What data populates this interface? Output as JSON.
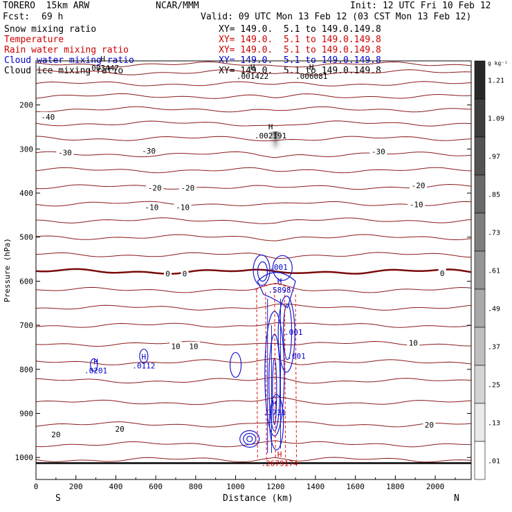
{
  "header": {
    "model": "TORERO  15km ARW",
    "org": "NCAR/MMM",
    "init": "Init: 12 UTC Fri 10 Feb 12",
    "fcst_label": "Fcst:",
    "fcst_value": "69 h",
    "valid": "Valid: 09 UTC Mon 13 Feb 12 (03 CST Mon 13 Feb 12)"
  },
  "legend": [
    {
      "label": "Snow mixing ratio",
      "xy": "XY= 149.0.  5.1 to 149.0.149.8",
      "color": "#000000"
    },
    {
      "label": "Temperature",
      "xy": "XY= 149.0.  5.1 to 149.0.149.8",
      "color": "#cc0000"
    },
    {
      "label": "Rain water mixing ratio",
      "xy": "XY= 149.0.  5.1 to 149.0.149.8",
      "color": "#cc0000"
    },
    {
      "label": "Cloud water mixing ratio",
      "xy": "XY= 149.0.  5.1 to 149.0.149.8",
      "color": "#0000cc"
    },
    {
      "label": "Cloud ice mixing ratio",
      "xy": "XY= 149.0.  5.1 to 149.0.149.8",
      "color": "#000000"
    }
  ],
  "chart_data": {
    "type": "cross-section",
    "xlabel": "Distance (km)",
    "ylabel": "Pressure (hPa)",
    "xlim": [
      0,
      2180
    ],
    "ylim": [
      1050,
      100
    ],
    "x_ticks": [
      0,
      200,
      400,
      600,
      800,
      1000,
      1200,
      1400,
      1600,
      1800,
      2000
    ],
    "y_ticks": [
      200,
      300,
      400,
      500,
      600,
      700,
      800,
      900,
      1000
    ],
    "left_end": "S",
    "right_end": "N",
    "colorbar": {
      "unit": "g kg⁻¹",
      "levels": [
        "1.21",
        "1.09",
        ".97",
        ".85",
        ".73",
        ".61",
        ".49",
        ".37",
        ".25",
        ".13",
        ".01"
      ]
    },
    "temperature_contours_pressure_hpa": [
      1005,
      970,
      925,
      875,
      826,
      784,
      742,
      700,
      660,
      620,
      578,
      540,
      500,
      462,
      424,
      386,
      348,
      312,
      276,
      242,
      210,
      180,
      152,
      126,
      108
    ],
    "freezing_level_hpa": 580,
    "surface_pressure_hpa": 1013,
    "temperature_labels": [
      {
        "x": 100,
        "p": 948,
        "text": "20"
      },
      {
        "x": 420,
        "p": 935,
        "text": "20"
      },
      {
        "x": 1970,
        "p": 926,
        "text": "20"
      },
      {
        "x": 700,
        "p": 748,
        "text": "10"
      },
      {
        "x": 790,
        "p": 748,
        "text": "10"
      },
      {
        "x": 1890,
        "p": 740,
        "text": "10"
      },
      {
        "x": 660,
        "p": 583,
        "text": "0"
      },
      {
        "x": 745,
        "p": 583,
        "text": "0"
      },
      {
        "x": 2035,
        "p": 582,
        "text": "0"
      },
      {
        "x": 580,
        "p": 432,
        "text": "-10"
      },
      {
        "x": 735,
        "p": 432,
        "text": "-10"
      },
      {
        "x": 1905,
        "p": 426,
        "text": "-10"
      },
      {
        "x": 595,
        "p": 388,
        "text": "-20"
      },
      {
        "x": 760,
        "p": 388,
        "text": "-20"
      },
      {
        "x": 1915,
        "p": 383,
        "text": "-20"
      },
      {
        "x": 145,
        "p": 308,
        "text": "-30"
      },
      {
        "x": 565,
        "p": 304,
        "text": "-30"
      },
      {
        "x": 1715,
        "p": 306,
        "text": "-30"
      },
      {
        "x": 60,
        "p": 227,
        "text": "-40"
      }
    ],
    "extrema_labels": [
      {
        "x": 1175,
        "p": 262,
        "text": "H",
        "value": ".002191",
        "color": "#000000"
      },
      {
        "x": 1085,
        "p": 127,
        "text": "H",
        "value": ".001422",
        "color": "#000000"
      },
      {
        "x": 1380,
        "p": 127,
        "text": "H",
        "value": ".006081",
        "color": "#000000"
      },
      {
        "x": 335,
        "p": 108,
        "text": "H",
        "value": ".003447",
        "color": "#000000"
      },
      {
        "x": 1215,
        "p": 560,
        "text": "",
        "value": ".001",
        "color": "#0000cc"
      },
      {
        "x": 1220,
        "p": 612,
        "text": "H",
        "value": ".5898",
        "color": "#0000cc"
      },
      {
        "x": 1290,
        "p": 708,
        "text": "",
        "value": ".001",
        "color": "#0000cc"
      },
      {
        "x": 1305,
        "p": 762,
        "text": "",
        "value": ".001",
        "color": "#0000cc"
      },
      {
        "x": 300,
        "p": 795,
        "text": "H",
        "value": ".0201",
        "color": "#0000cc"
      },
      {
        "x": 540,
        "p": 784,
        "text": "H",
        "value": ".0112",
        "color": "#0000cc"
      },
      {
        "x": 1195,
        "p": 890,
        "text": "H",
        "value": ".3731",
        "color": "#0000cc"
      },
      {
        "x": 1220,
        "p": 1005,
        "text": "H",
        "value": ".2679174",
        "color": "#cc0000"
      }
    ]
  }
}
